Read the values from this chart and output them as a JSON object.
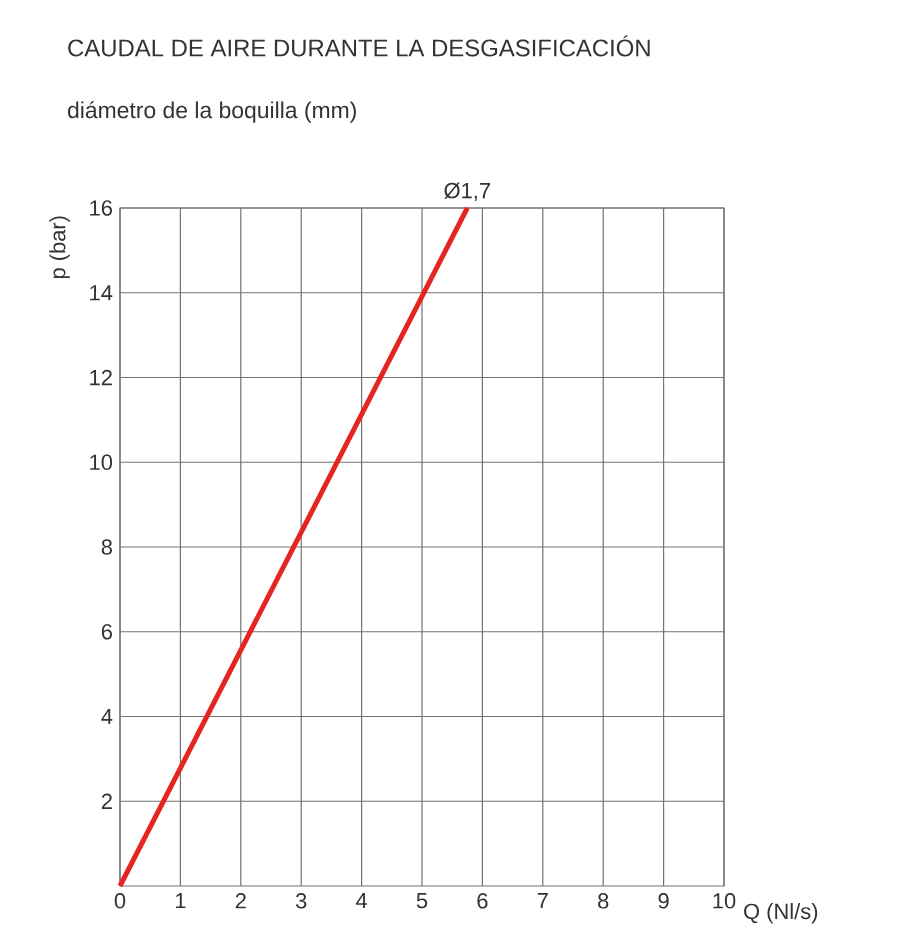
{
  "chart_data": {
    "type": "line",
    "title": "CAUDAL DE AIRE DURANTE LA DESGASIFICACIÓN",
    "subtitle": "diámetro de la boquilla (mm)",
    "xlabel": "Q (Nl/s)",
    "ylabel": "p (bar)",
    "x": [
      0,
      5.75
    ],
    "series": [
      {
        "color": "#e52521",
        "values": [
          0,
          16
        ]
      }
    ],
    "annotations": [
      {
        "text": "Ø1,7",
        "x": 5.75,
        "y": 16
      }
    ],
    "xlim": [
      0,
      10
    ],
    "ylim": [
      0,
      16
    ],
    "xticks": [
      0,
      1,
      2,
      3,
      4,
      5,
      6,
      7,
      8,
      9,
      10
    ],
    "yticks": [
      2,
      4,
      6,
      8,
      10,
      12,
      14,
      16
    ],
    "grid": true,
    "line_style": "solid",
    "marker": "none"
  }
}
